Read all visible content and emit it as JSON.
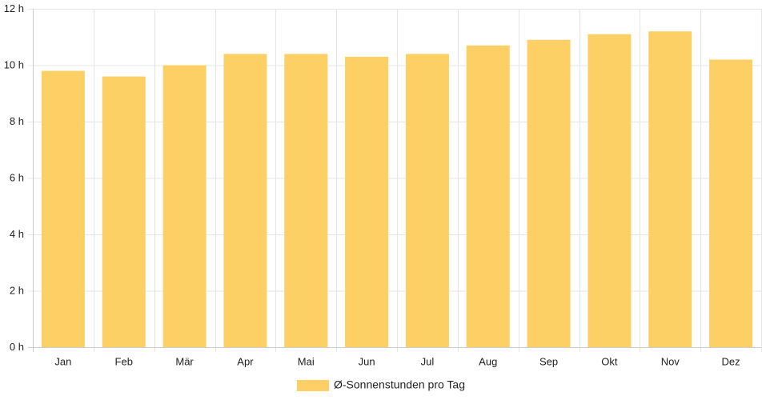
{
  "chart_data": {
    "type": "bar",
    "categories": [
      "Jan",
      "Feb",
      "Mär",
      "Apr",
      "Mai",
      "Jun",
      "Jul",
      "Aug",
      "Sep",
      "Okt",
      "Nov",
      "Dez"
    ],
    "series": [
      {
        "name": "Ø-Sonnenstunden pro Tag",
        "values": [
          9.8,
          9.6,
          10.0,
          10.4,
          10.4,
          10.3,
          10.4,
          10.7,
          10.9,
          11.1,
          11.2,
          10.2
        ]
      }
    ],
    "ylim": [
      0,
      12
    ],
    "yticks": [
      "0 h",
      "2 h",
      "4 h",
      "6 h",
      "8 h",
      "10 h",
      "12 h"
    ],
    "ytick_values": [
      0,
      2,
      4,
      6,
      8,
      10,
      12
    ],
    "grid": true,
    "legend_position": "bottom",
    "colors": {
      "bar": "#FDD066",
      "grid": "#e5e5e5",
      "axis": "#cccccc",
      "text": "#222222"
    }
  }
}
